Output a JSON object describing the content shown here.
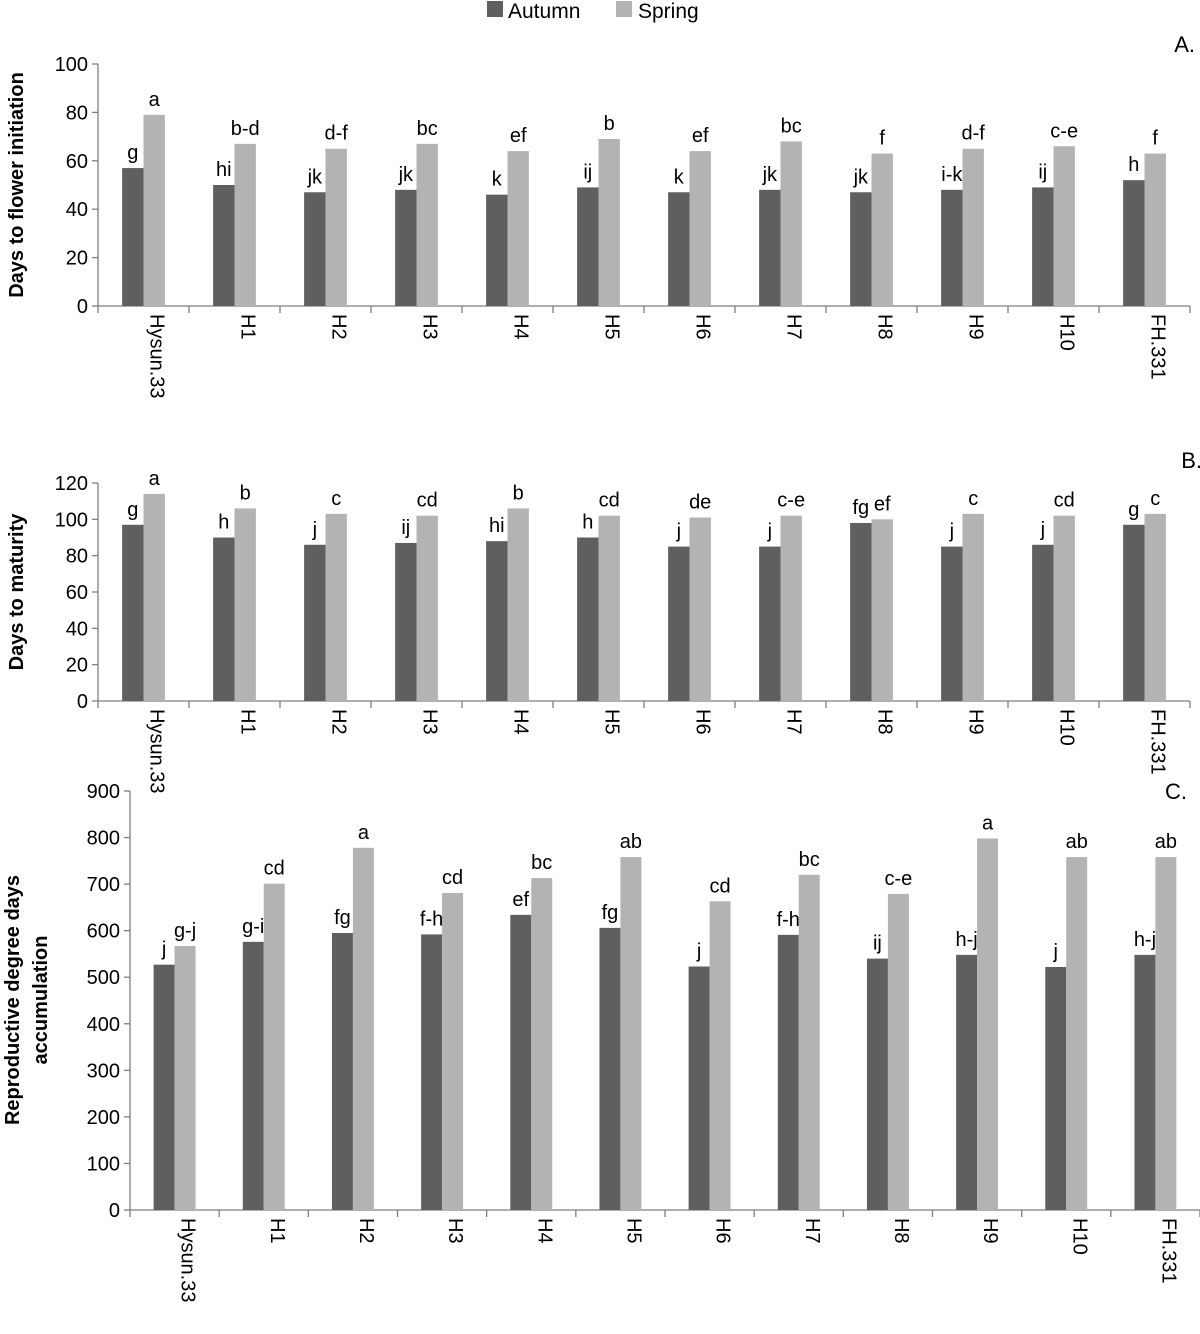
{
  "legend": [
    {
      "name": "Autumn",
      "color": "#5f5f5f"
    },
    {
      "name": "Spring",
      "color": "#b3b3b3"
    }
  ],
  "colors": {
    "autumn": "#5f5f5f",
    "spring": "#b3b3b3",
    "axis": "#7f7f7f",
    "text": "#000000"
  },
  "chart_data": [
    {
      "type": "bar",
      "panel_label": "A.",
      "ylabel": "Days to flower initiation",
      "ylim": [
        0,
        100
      ],
      "yticks": [
        "0",
        "20",
        "40",
        "60",
        "80",
        "100"
      ],
      "grid": false,
      "legend_position": "top-center",
      "categories": [
        "Hysun.33",
        "H1",
        "H2",
        "H3",
        "H4",
        "H5",
        "H6",
        "H7",
        "H8",
        "H9",
        "H10",
        "FH.331"
      ],
      "series": [
        {
          "name": "Autumn",
          "values": [
            57,
            50,
            47,
            48,
            46,
            49,
            47,
            48,
            47,
            48,
            49,
            52
          ],
          "labels": [
            "g",
            "hi",
            "jk",
            "jk",
            "k",
            "ij",
            "k",
            "jk",
            "jk",
            "i-k",
            "ij",
            "h"
          ]
        },
        {
          "name": "Spring",
          "values": [
            79,
            67,
            65,
            67,
            64,
            69,
            64,
            68,
            63,
            65,
            66,
            63
          ],
          "labels": [
            "a",
            "b-d",
            "d-f",
            "bc",
            "ef",
            "b",
            "ef",
            "bc",
            "f",
            "d-f",
            "c-e",
            "f"
          ]
        }
      ]
    },
    {
      "type": "bar",
      "panel_label": "B.",
      "ylabel": "Days to maturity",
      "ylim": [
        0,
        120
      ],
      "yticks": [
        "0",
        "20",
        "40",
        "60",
        "80",
        "100",
        "120"
      ],
      "grid": false,
      "categories": [
        "Hysun.33",
        "H1",
        "H2",
        "H3",
        "H4",
        "H5",
        "H6",
        "H7",
        "H8",
        "H9",
        "H10",
        "FH.331"
      ],
      "series": [
        {
          "name": "Autumn",
          "values": [
            97,
            90,
            86,
            87,
            88,
            90,
            85,
            85,
            98,
            85,
            86,
            97
          ],
          "labels": [
            "g",
            "h",
            "j",
            "ij",
            "hi",
            "h",
            "j",
            "j",
            "fg",
            "j",
            "j",
            "g"
          ]
        },
        {
          "name": "Spring",
          "values": [
            114,
            106,
            103,
            102,
            106,
            102,
            101,
            102,
            100,
            103,
            102,
            103
          ],
          "labels": [
            "a",
            "b",
            "c",
            "cd",
            "b",
            "cd",
            "de",
            "c-e",
            "ef",
            "c",
            "cd",
            "c"
          ]
        }
      ]
    },
    {
      "type": "bar",
      "panel_label": "C.",
      "ylabel": "Reproductive degree days accumulation",
      "ylabel_lines": [
        "Reproductive degree days",
        "accumulation"
      ],
      "ylim": [
        0,
        900
      ],
      "yticks": [
        "0",
        "100",
        "200",
        "300",
        "400",
        "500",
        "600",
        "700",
        "800",
        "900"
      ],
      "grid": false,
      "categories": [
        "Hysun.33",
        "H1",
        "H2",
        "H3",
        "H4",
        "H5",
        "H6",
        "H7",
        "H8",
        "H9",
        "H10",
        "FH.331"
      ],
      "series": [
        {
          "name": "Autumn",
          "values": [
            527,
            576,
            595,
            592,
            634,
            606,
            523,
            591,
            540,
            548,
            522,
            548
          ],
          "labels": [
            "j",
            "g-i",
            "fg",
            "f-h",
            "ef",
            "fg",
            "j",
            "f-h",
            "ij",
            "h-j",
            "j",
            "h-j"
          ]
        },
        {
          "name": "Spring",
          "values": [
            567,
            701,
            778,
            681,
            713,
            758,
            663,
            720,
            679,
            798,
            758,
            758
          ],
          "labels": [
            "g-j",
            "cd",
            "a",
            "cd",
            "bc",
            "ab",
            "cd",
            "bc",
            "c-e",
            "a",
            "ab",
            "ab"
          ]
        }
      ]
    }
  ]
}
